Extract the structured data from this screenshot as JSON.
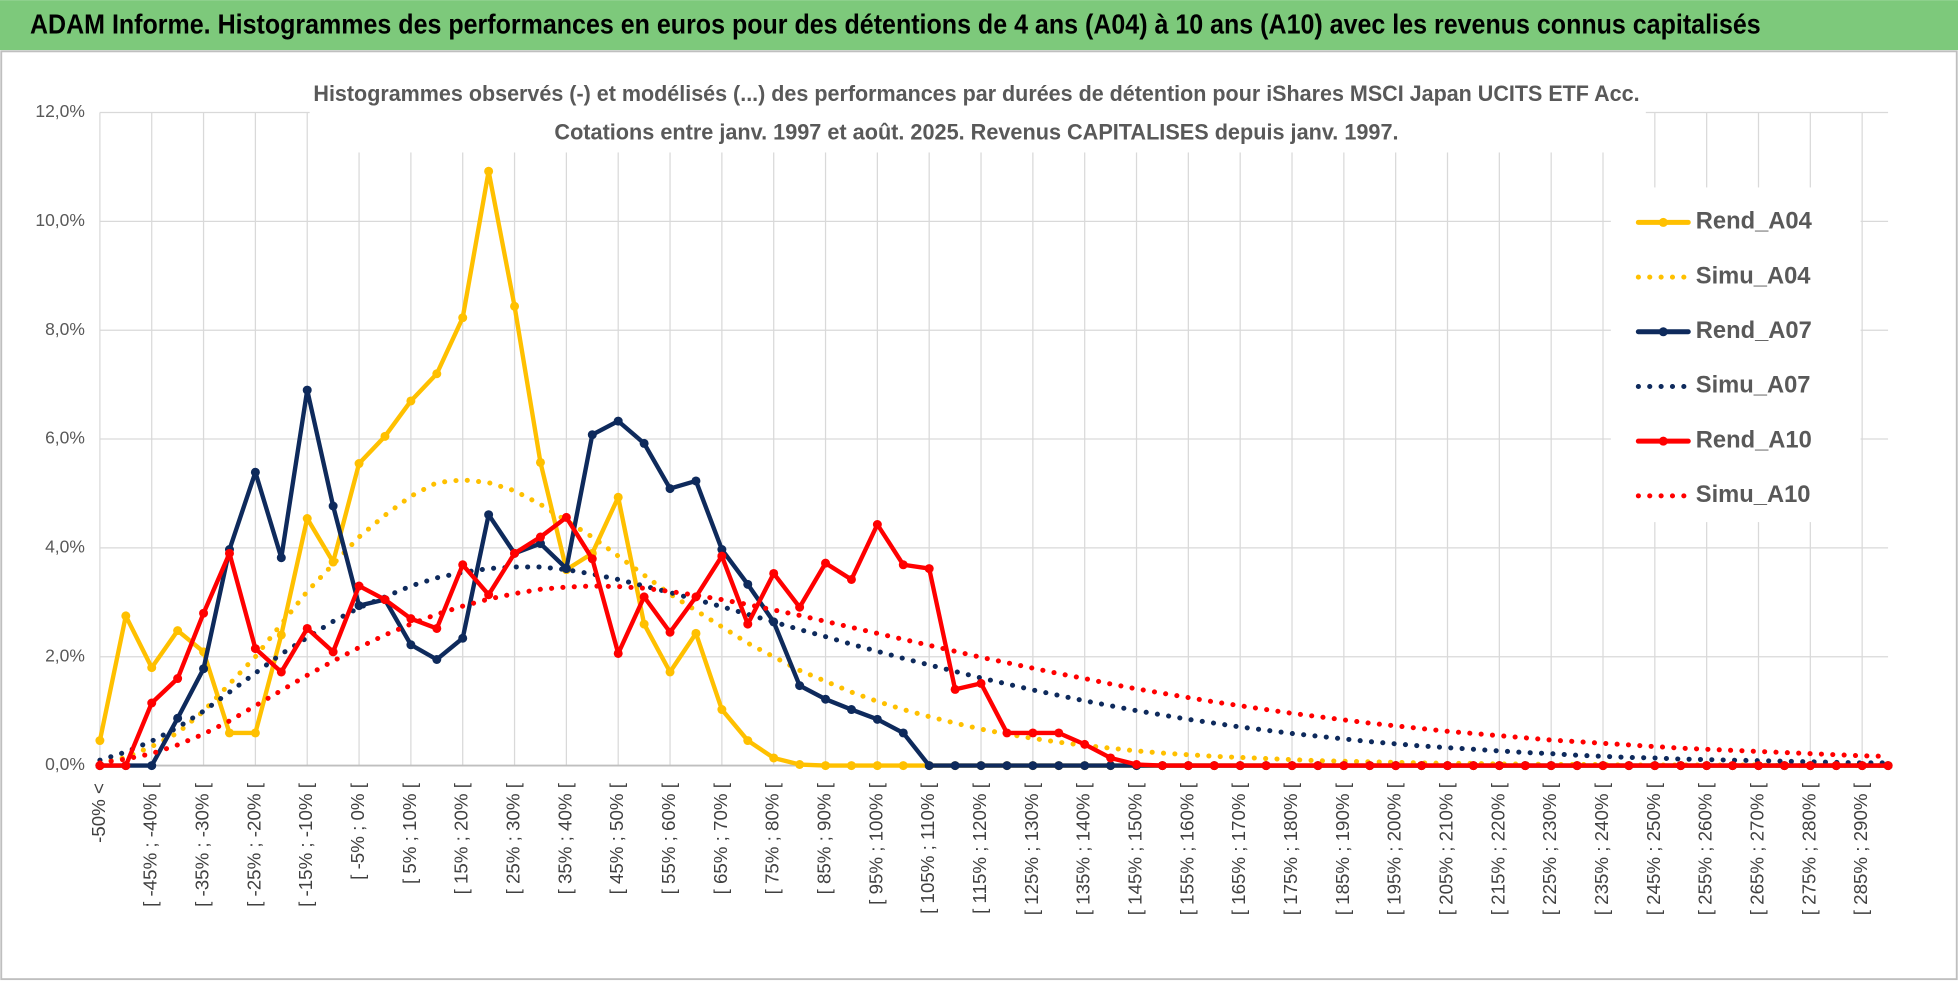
{
  "chart_data": {
    "type": "line",
    "header": "ADAM Informe. Histogrammes des performances en euros pour des détentions de 4 ans (A04) à 10 ans (A10) avec les revenus connus capitalisés",
    "title": "Histogrammes observés (-) et modélisés (...) des performances par durées de détention pour iShares MSCI Japan UCITS ETF Acc.",
    "subtitle": "Cotations entre janv. 1997 et août. 2025. Revenus CAPITALISES depuis janv. 1997.",
    "categories": [
      "-50% <",
      null,
      "[ -45% ; -40% [",
      null,
      "[ -35% ; -30% [",
      null,
      "[ -25% ; -20% [",
      null,
      "[ -15% ; -10% [",
      null,
      "[ -5% ; 0% [",
      null,
      "[ 5% ; 10% [",
      null,
      "[ 15% ; 20% [",
      null,
      "[ 25% ; 30% [",
      null,
      "[ 35% ; 40% [",
      null,
      "[ 45% ; 50% [",
      null,
      "[ 55% ; 60% [",
      null,
      "[ 65% ; 70% [",
      null,
      "[ 75% ; 80% [",
      null,
      "[ 85% ; 90% [",
      null,
      "[ 95% ; 100% [",
      null,
      "[ 105% ; 110% [",
      null,
      "[ 115% ; 120% [",
      null,
      "[ 125% ; 130% [",
      null,
      "[ 135% ; 140% [",
      null,
      "[ 145% ; 150% [",
      null,
      "[ 155% ; 160% [",
      null,
      "[ 165% ; 170% [",
      null,
      "[ 175% ; 180% [",
      null,
      "[ 185% ; 190% [",
      null,
      "[ 195% ; 200% [",
      null,
      "[ 205% ; 210% [",
      null,
      "[ 215% ; 220% [",
      null,
      "[ 225% ; 230% [",
      null,
      "[ 235% ; 240% [",
      null,
      "[ 245% ; 250% [",
      null,
      "[ 255% ; 260% [",
      null,
      "[ 265% ; 270% [",
      null,
      "[ 275% ; 280% [",
      null,
      "[ 285% ; 290% [",
      null
    ],
    "series": [
      {
        "name": "Rend_A04",
        "color": "#ffc000",
        "dash": "solid",
        "marker": true,
        "values": [
          0.46,
          2.75,
          1.8,
          2.48,
          2.09,
          0.6,
          0.6,
          2.4,
          4.54,
          3.74,
          5.55,
          6.05,
          6.7,
          7.2,
          8.23,
          10.92,
          8.44,
          5.57,
          3.6,
          3.9,
          4.93,
          2.6,
          1.72,
          2.43,
          1.03,
          0.46,
          0.14,
          0.02,
          0,
          0,
          0,
          0,
          0,
          0,
          0,
          0,
          0,
          0,
          0,
          0,
          0,
          0,
          0,
          0,
          0,
          0,
          0,
          0,
          0,
          0,
          0,
          0,
          0,
          0,
          0,
          0,
          0,
          0,
          0,
          0,
          0,
          0,
          0,
          0,
          0,
          0,
          0,
          0,
          0,
          0
        ]
      },
      {
        "name": "Simu_A04",
        "color": "#ffc000",
        "dash": "dotted",
        "marker": false,
        "values": [
          0.05,
          0.15,
          0.35,
          0.6,
          1.0,
          1.5,
          2.0,
          2.6,
          3.2,
          3.7,
          4.2,
          4.6,
          4.95,
          5.2,
          5.25,
          5.2,
          5.05,
          4.8,
          4.5,
          4.2,
          3.85,
          3.5,
          3.15,
          2.85,
          2.55,
          2.25,
          2.0,
          1.75,
          1.55,
          1.35,
          1.18,
          1.03,
          0.9,
          0.78,
          0.67,
          0.58,
          0.5,
          0.43,
          0.37,
          0.32,
          0.27,
          0.23,
          0.2,
          0.17,
          0.15,
          0.13,
          0.11,
          0.09,
          0.08,
          0.07,
          0.06,
          0.05,
          0.04,
          0.04,
          0.03,
          0.03,
          0.02,
          0.02,
          0.02,
          0.01,
          0.01,
          0.01,
          0.01,
          0.01,
          0.01,
          0,
          0,
          0,
          0,
          0
        ]
      },
      {
        "name": "Rend_A07",
        "color": "#0e2a5c",
        "dash": "solid",
        "marker": true,
        "values": [
          0,
          0,
          0,
          0.87,
          1.78,
          3.97,
          5.39,
          3.82,
          6.9,
          4.77,
          2.94,
          3.05,
          2.22,
          1.95,
          2.34,
          4.61,
          3.9,
          4.08,
          3.62,
          6.08,
          6.33,
          5.92,
          5.09,
          5.23,
          3.97,
          3.33,
          2.64,
          1.47,
          1.22,
          1.03,
          0.85,
          0.6,
          0,
          0,
          0,
          0,
          0,
          0,
          0,
          0,
          0,
          0,
          0,
          0,
          0,
          0,
          0,
          0,
          0,
          0,
          0,
          0,
          0,
          0,
          0,
          0,
          0,
          0,
          0,
          0,
          0,
          0,
          0,
          0,
          0,
          0,
          0,
          0,
          0,
          0
        ]
      },
      {
        "name": "Simu_A07",
        "color": "#0e2a5c",
        "dash": "dotted",
        "marker": false,
        "values": [
          0.1,
          0.25,
          0.45,
          0.7,
          1.0,
          1.35,
          1.7,
          2.05,
          2.35,
          2.65,
          2.9,
          3.1,
          3.3,
          3.45,
          3.55,
          3.62,
          3.65,
          3.65,
          3.6,
          3.52,
          3.42,
          3.3,
          3.18,
          3.05,
          2.92,
          2.78,
          2.64,
          2.5,
          2.37,
          2.23,
          2.1,
          1.97,
          1.85,
          1.73,
          1.61,
          1.5,
          1.39,
          1.29,
          1.19,
          1.1,
          1.01,
          0.93,
          0.85,
          0.78,
          0.71,
          0.65,
          0.59,
          0.54,
          0.49,
          0.44,
          0.4,
          0.36,
          0.33,
          0.3,
          0.27,
          0.24,
          0.22,
          0.19,
          0.17,
          0.15,
          0.14,
          0.12,
          0.11,
          0.1,
          0.09,
          0.08,
          0.07,
          0.06,
          0.05,
          0.05
        ]
      },
      {
        "name": "Rend_A10",
        "color": "#ff0000",
        "dash": "solid",
        "marker": true,
        "values": [
          0,
          0,
          1.15,
          1.6,
          2.8,
          3.9,
          2.15,
          1.72,
          2.52,
          2.09,
          3.3,
          3.05,
          2.7,
          2.52,
          3.69,
          3.14,
          3.9,
          4.2,
          4.56,
          3.8,
          2.06,
          3.1,
          2.45,
          3.1,
          3.85,
          2.6,
          3.53,
          2.91,
          3.72,
          3.42,
          4.43,
          3.69,
          3.62,
          1.4,
          1.51,
          0.6,
          0.6,
          0.6,
          0.39,
          0.14,
          0.02,
          0,
          0,
          0,
          0,
          0,
          0,
          0,
          0,
          0,
          0,
          0,
          0,
          0,
          0,
          0,
          0,
          0,
          0,
          0,
          0,
          0,
          0,
          0,
          0,
          0,
          0,
          0,
          0,
          0
        ]
      },
      {
        "name": "Simu_A10",
        "color": "#ff0000",
        "dash": "dotted",
        "marker": false,
        "values": [
          0.05,
          0.12,
          0.22,
          0.38,
          0.58,
          0.82,
          1.1,
          1.38,
          1.66,
          1.92,
          2.17,
          2.4,
          2.6,
          2.78,
          2.93,
          3.06,
          3.16,
          3.24,
          3.28,
          3.3,
          3.29,
          3.26,
          3.2,
          3.13,
          3.05,
          2.96,
          2.86,
          2.76,
          2.65,
          2.54,
          2.43,
          2.32,
          2.21,
          2.1,
          1.99,
          1.89,
          1.79,
          1.69,
          1.6,
          1.5,
          1.41,
          1.33,
          1.25,
          1.17,
          1.1,
          1.03,
          0.96,
          0.9,
          0.84,
          0.78,
          0.73,
          0.68,
          0.63,
          0.59,
          0.55,
          0.51,
          0.47,
          0.44,
          0.41,
          0.38,
          0.35,
          0.32,
          0.3,
          0.28,
          0.26,
          0.24,
          0.22,
          0.2,
          0.18,
          0.17
        ]
      }
    ],
    "ylim": [
      0,
      12
    ],
    "yticks": [
      {
        "value": 0,
        "label": "0,0%"
      },
      {
        "value": 2,
        "label": "2,0%"
      },
      {
        "value": 4,
        "label": "4,0%"
      },
      {
        "value": 6,
        "label": "6,0%"
      },
      {
        "value": 8,
        "label": "8,0%"
      },
      {
        "value": 10,
        "label": "10,0%"
      },
      {
        "value": 12,
        "label": "12,0%"
      }
    ],
    "grid": true,
    "legend": "right"
  }
}
